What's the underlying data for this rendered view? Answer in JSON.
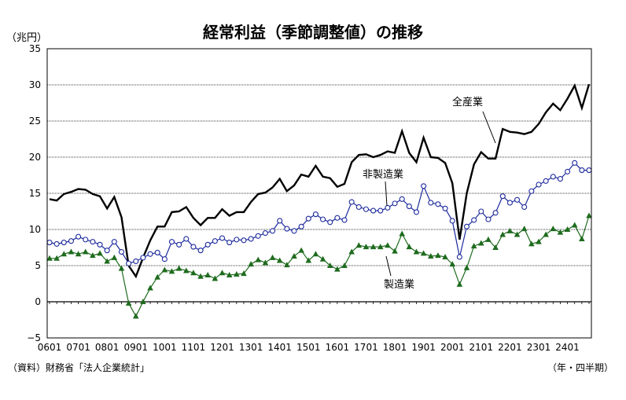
{
  "chart_data": {
    "type": "line",
    "title": "経常利益（季節調整値）の推移",
    "ylabel": "（兆円）",
    "xlabel": "（年・四半期）",
    "source": "（資料）財務省「法人企業統計」",
    "ylim": [
      -5,
      35
    ],
    "y_ticks": [
      "35",
      "30",
      "25",
      "20",
      "15",
      "10",
      "5",
      "0",
      "−5"
    ],
    "x_tick_labels": [
      "0601",
      "0701",
      "0801",
      "0901",
      "1001",
      "1101",
      "1201",
      "1301",
      "1401",
      "1501",
      "1601",
      "1701",
      "1801",
      "1901",
      "2001",
      "2101",
      "2201",
      "2301",
      "2401"
    ],
    "grid": true,
    "series": [
      {
        "name": "全産業",
        "color": "#000000",
        "marker": "none",
        "values": [
          14.2,
          14.0,
          14.9,
          15.2,
          15.6,
          15.5,
          14.9,
          14.6,
          12.9,
          14.5,
          11.7,
          5.0,
          3.5,
          6.1,
          8.5,
          10.4,
          10.4,
          12.4,
          12.5,
          13.1,
          11.6,
          10.6,
          11.6,
          11.6,
          12.8,
          11.9,
          12.4,
          12.4,
          13.8,
          14.9,
          15.1,
          15.8,
          17.0,
          15.3,
          16.1,
          17.6,
          17.3,
          18.8,
          17.3,
          17.1,
          15.9,
          16.3,
          19.3,
          20.3,
          20.4,
          20.0,
          20.3,
          20.8,
          20.6,
          23.6,
          20.6,
          19.3,
          22.7,
          20.0,
          19.9,
          19.2,
          16.4,
          8.6,
          15.0,
          19.0,
          20.7,
          19.8,
          19.8,
          23.9,
          23.5,
          23.4,
          23.2,
          23.5,
          24.6,
          26.2,
          27.4,
          26.5,
          28.1,
          29.9,
          26.8,
          30.1
        ]
      },
      {
        "name": "非製造業",
        "color": "#1c2a9c",
        "marker": "open-circle",
        "values": [
          8.2,
          8.0,
          8.2,
          8.4,
          9.0,
          8.6,
          8.3,
          7.9,
          7.1,
          8.3,
          6.9,
          5.3,
          5.6,
          6.1,
          6.6,
          6.8,
          5.9,
          8.3,
          7.9,
          8.7,
          7.6,
          7.1,
          7.9,
          8.4,
          8.8,
          8.2,
          8.6,
          8.5,
          8.7,
          9.1,
          9.5,
          9.8,
          11.2,
          10.1,
          9.8,
          10.4,
          11.5,
          12.1,
          11.4,
          11.0,
          11.6,
          11.3,
          13.8,
          13.1,
          12.8,
          12.6,
          12.6,
          13.0,
          13.6,
          14.2,
          13.2,
          12.4,
          16.0,
          13.7,
          13.5,
          12.9,
          11.2,
          6.2,
          10.4,
          11.3,
          12.5,
          11.4,
          12.3,
          14.6,
          13.7,
          14.1,
          13.1,
          15.3,
          16.2,
          16.7,
          17.3,
          17.0,
          18.0,
          19.2,
          18.2,
          18.2
        ]
      },
      {
        "name": "製造業",
        "color": "#1e6b1e",
        "marker": "filled-triangle",
        "values": [
          6.0,
          6.0,
          6.6,
          6.9,
          6.6,
          6.9,
          6.4,
          6.7,
          5.6,
          6.1,
          4.6,
          -0.2,
          -2.0,
          0.0,
          1.9,
          3.4,
          4.4,
          4.2,
          4.6,
          4.3,
          4.0,
          3.5,
          3.7,
          3.2,
          4.0,
          3.7,
          3.8,
          3.9,
          5.2,
          5.8,
          5.4,
          6.1,
          5.7,
          5.1,
          6.3,
          7.1,
          5.7,
          6.6,
          5.9,
          5.0,
          4.5,
          5.0,
          6.9,
          7.8,
          7.6,
          7.6,
          7.6,
          7.8,
          7.0,
          9.4,
          7.6,
          6.9,
          6.7,
          6.3,
          6.4,
          6.2,
          5.2,
          2.4,
          4.7,
          7.7,
          8.1,
          8.6,
          7.5,
          9.3,
          9.8,
          9.3,
          10.1,
          8.0,
          8.3,
          9.3,
          10.1,
          9.6,
          10.0,
          10.6,
          8.7,
          11.9
        ]
      }
    ]
  }
}
